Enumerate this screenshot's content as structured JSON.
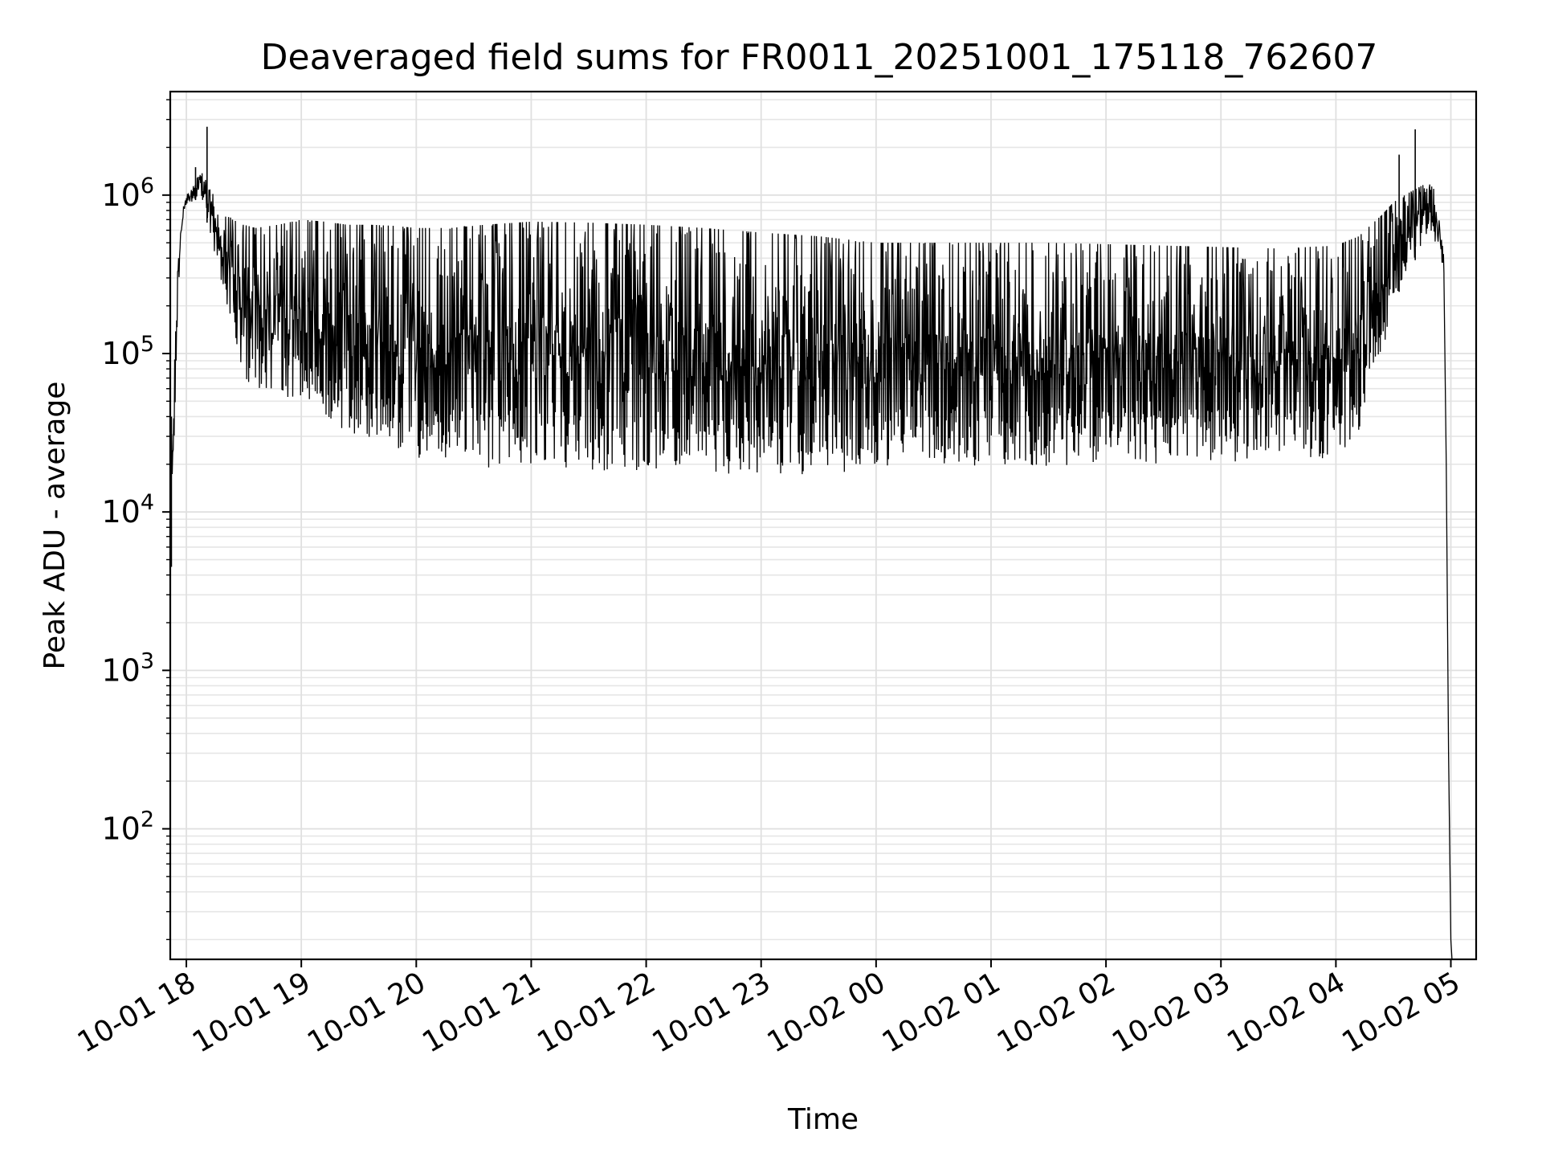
{
  "chart_data": {
    "type": "line",
    "title": "Deaveraged field sums for FR0011_20251001_175118_762607",
    "xlabel": "Time",
    "ylabel": "Peak ADU - average",
    "yscale": "log",
    "ylim": [
      15,
      4500000
    ],
    "xlim_hours": [
      17.86,
      29.22
    ],
    "grid": true,
    "x_ticks": [
      {
        "hour": 18,
        "label": "10-01 18"
      },
      {
        "hour": 19,
        "label": "10-01 19"
      },
      {
        "hour": 20,
        "label": "10-01 20"
      },
      {
        "hour": 21,
        "label": "10-01 21"
      },
      {
        "hour": 22,
        "label": "10-01 22"
      },
      {
        "hour": 23,
        "label": "10-01 23"
      },
      {
        "hour": 24,
        "label": "10-02 00"
      },
      {
        "hour": 25,
        "label": "10-02 01"
      },
      {
        "hour": 26,
        "label": "10-02 02"
      },
      {
        "hour": 27,
        "label": "10-02 03"
      },
      {
        "hour": 28,
        "label": "10-02 04"
      },
      {
        "hour": 29,
        "label": "10-02 05"
      }
    ],
    "y_ticks": [
      {
        "value": 100,
        "base": "10",
        "exp": "2"
      },
      {
        "value": 1000,
        "base": "10",
        "exp": "3"
      },
      {
        "value": 10000,
        "base": "10",
        "exp": "4"
      },
      {
        "value": 100000,
        "base": "10",
        "exp": "5"
      },
      {
        "value": 1000000,
        "base": "10",
        "exp": "6"
      }
    ],
    "series": [
      {
        "name": "peak_adu_minus_average",
        "color": "#000000",
        "envelope": {
          "hour": [
            17.86,
            17.88,
            17.9,
            17.92,
            17.95,
            17.98,
            18.0,
            18.05,
            18.1,
            18.15,
            18.2,
            18.3,
            18.4,
            18.5,
            18.6,
            18.8,
            19.0,
            19.2,
            19.4,
            19.6,
            19.8,
            20.0,
            20.3,
            20.6,
            21.0,
            21.5,
            22.0,
            22.5,
            23.0,
            23.5,
            24.0,
            24.5,
            25.0,
            25.5,
            26.0,
            26.5,
            27.0,
            27.5,
            28.0,
            28.2,
            28.4,
            28.5,
            28.6,
            28.7,
            28.8,
            28.85,
            28.9,
            28.94
          ],
          "upper": [
            25000,
            35000,
            100000,
            300000,
            600000,
            900000,
            1000000,
            1100000,
            1300000,
            1400000,
            1100000,
            850000,
            700000,
            650000,
            620000,
            650000,
            700000,
            680000,
            650000,
            650000,
            640000,
            620000,
            620000,
            650000,
            680000,
            670000,
            650000,
            620000,
            580000,
            550000,
            500000,
            500000,
            500000,
            500000,
            490000,
            480000,
            470000,
            460000,
            480000,
            550000,
            750000,
            900000,
            1000000,
            1100000,
            1200000,
            1100000,
            700000,
            400000
          ],
          "lower": [
            4500,
            17000,
            30000,
            150000,
            500000,
            750000,
            850000,
            900000,
            950000,
            900000,
            550000,
            300000,
            120000,
            70000,
            60000,
            55000,
            50000,
            40000,
            32000,
            26000,
            23000,
            22000,
            20000,
            19000,
            19000,
            18500,
            17500,
            17000,
            16500,
            17000,
            19000,
            20000,
            19500,
            19500,
            20000,
            20000,
            20500,
            21000,
            22000,
            30000,
            100000,
            200000,
            300000,
            400000,
            500000,
            500000,
            400000,
            300000
          ]
        },
        "spikes": [
          {
            "hour": 18.18,
            "value": 2700000
          },
          {
            "hour": 28.69,
            "value": 2600000
          },
          {
            "hour": 28.55,
            "value": 1800000
          },
          {
            "hour": 18.08,
            "value": 1500000
          }
        ],
        "tail": {
          "hour": [
            28.94,
            28.96,
            28.98,
            29.0,
            29.01
          ],
          "value": [
            300000,
            20000,
            300,
            20,
            15
          ]
        }
      }
    ]
  }
}
